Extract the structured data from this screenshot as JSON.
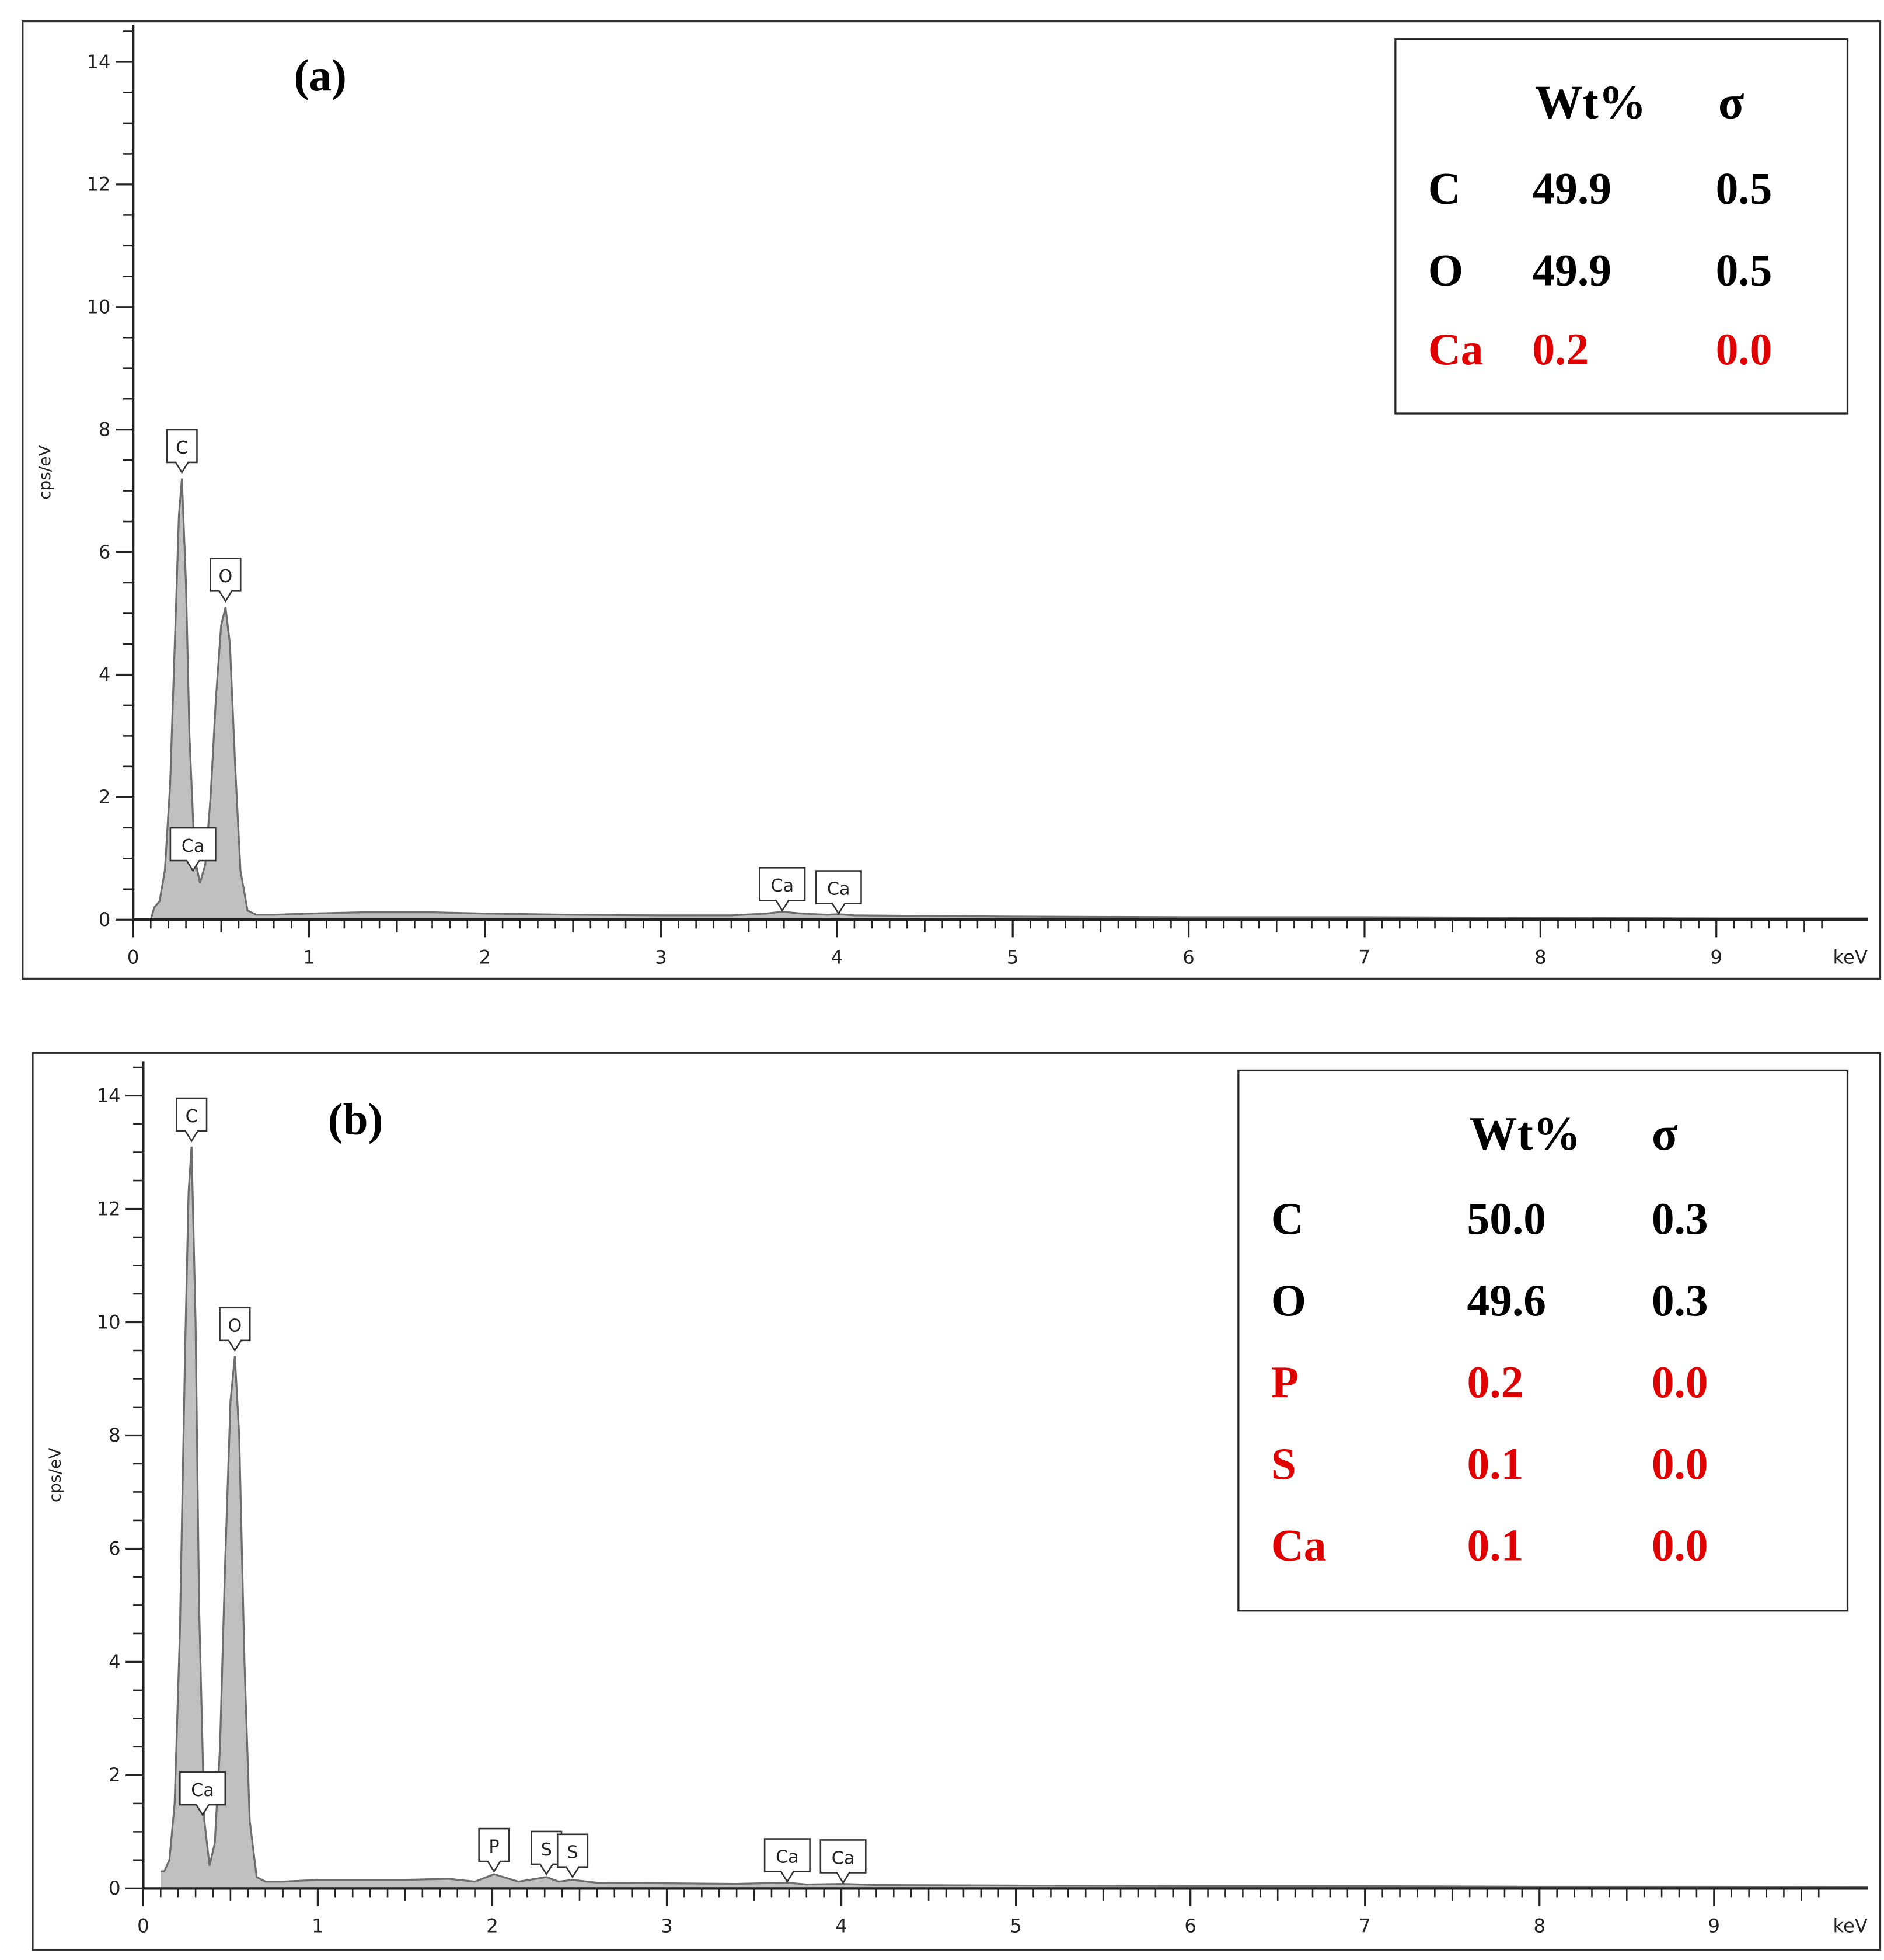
{
  "chart_data": [
    {
      "type": "area",
      "panel_label": "(a)",
      "y_label": "cps/eV",
      "x_unit": "keV",
      "color": "#c0c0c0",
      "line_color": "#6e6e6e",
      "xlim": [
        0,
        9.86
      ],
      "ylim": [
        0,
        14.6
      ],
      "xticks": [
        0,
        1,
        2,
        3,
        4,
        5,
        6,
        7,
        8,
        9
      ],
      "yticks": [
        0,
        2,
        4,
        6,
        8,
        10,
        12,
        14
      ],
      "x": [
        0.1,
        0.12,
        0.15,
        0.18,
        0.21,
        0.24,
        0.26,
        0.277,
        0.3,
        0.32,
        0.35,
        0.38,
        0.41,
        0.44,
        0.47,
        0.5,
        0.525,
        0.55,
        0.58,
        0.61,
        0.65,
        0.7,
        0.8,
        1.0,
        1.3,
        1.7,
        2.0,
        2.5,
        3.0,
        3.4,
        3.6,
        3.69,
        3.8,
        3.95,
        4.01,
        4.1,
        4.5,
        5,
        6,
        7,
        8,
        9,
        9.86
      ],
      "values": [
        0,
        0.2,
        0.3,
        0.8,
        2.2,
        4.8,
        6.6,
        7.2,
        5.5,
        3.0,
        1.0,
        0.6,
        0.9,
        2.0,
        3.6,
        4.8,
        5.1,
        4.5,
        2.5,
        0.8,
        0.15,
        0.08,
        0.08,
        0.1,
        0.12,
        0.12,
        0.1,
        0.08,
        0.07,
        0.07,
        0.1,
        0.13,
        0.1,
        0.08,
        0.09,
        0.07,
        0.06,
        0.05,
        0.04,
        0.04,
        0.03,
        0.02,
        0.02
      ],
      "peak_labels": [
        {
          "label": "C",
          "x": 0.277,
          "y": 7.3
        },
        {
          "label": "O",
          "x": 0.525,
          "y": 5.2
        },
        {
          "label": "Ca",
          "x": 0.34,
          "y": 0.8
        },
        {
          "label": "Ca",
          "x": 3.69,
          "y": 0.15
        },
        {
          "label": "Ca",
          "x": 4.01,
          "y": 0.1
        }
      ],
      "table": {
        "columns": [
          "Wt%",
          "σ"
        ],
        "rows": [
          {
            "element": "C",
            "wt": "49.9",
            "sigma": "0.5",
            "color": "#000000"
          },
          {
            "element": "O",
            "wt": "49.9",
            "sigma": "0.5",
            "color": "#000000"
          },
          {
            "element": "Ca",
            "wt": "0.2",
            "sigma": "0.0",
            "color": "#e00000"
          }
        ]
      }
    },
    {
      "type": "area",
      "panel_label": "(b)",
      "y_label": "cps/eV",
      "x_unit": "keV",
      "color": "#c0c0c0",
      "line_color": "#6e6e6e",
      "xlim": [
        0,
        9.88
      ],
      "ylim": [
        0,
        14.6
      ],
      "xticks": [
        0,
        1,
        2,
        3,
        4,
        5,
        6,
        7,
        8,
        9
      ],
      "yticks": [
        0,
        2,
        4,
        6,
        8,
        10,
        12,
        14
      ],
      "x": [
        0.1,
        0.12,
        0.15,
        0.18,
        0.21,
        0.24,
        0.26,
        0.277,
        0.3,
        0.32,
        0.35,
        0.38,
        0.41,
        0.44,
        0.47,
        0.5,
        0.525,
        0.55,
        0.58,
        0.61,
        0.65,
        0.7,
        0.8,
        1.0,
        1.3,
        1.5,
        1.75,
        1.9,
        2.01,
        2.15,
        2.31,
        2.38,
        2.46,
        2.6,
        3.0,
        3.4,
        3.69,
        3.8,
        4.01,
        4.2,
        5,
        6,
        7,
        8,
        9,
        9.88
      ],
      "values": [
        0.3,
        0.3,
        0.5,
        1.5,
        4.5,
        9.5,
        12.3,
        13.1,
        10.0,
        5.0,
        1.2,
        0.4,
        0.8,
        2.5,
        5.8,
        8.6,
        9.4,
        8.0,
        4.0,
        1.2,
        0.2,
        0.12,
        0.12,
        0.15,
        0.15,
        0.15,
        0.17,
        0.12,
        0.25,
        0.12,
        0.2,
        0.12,
        0.15,
        0.1,
        0.09,
        0.08,
        0.1,
        0.07,
        0.08,
        0.06,
        0.05,
        0.04,
        0.04,
        0.03,
        0.03,
        0.02
      ],
      "peak_labels": [
        {
          "label": "C",
          "x": 0.277,
          "y": 13.2
        },
        {
          "label": "O",
          "x": 0.525,
          "y": 9.5
        },
        {
          "label": "Ca",
          "x": 0.34,
          "y": 1.3
        },
        {
          "label": "P",
          "x": 2.01,
          "y": 0.3
        },
        {
          "label": "S",
          "x": 2.31,
          "y": 0.25
        },
        {
          "label": "S",
          "x": 2.46,
          "y": 0.2
        },
        {
          "label": "Ca",
          "x": 3.69,
          "y": 0.12
        },
        {
          "label": "Ca",
          "x": 4.01,
          "y": 0.1
        }
      ],
      "table": {
        "columns": [
          "Wt%",
          "σ"
        ],
        "rows": [
          {
            "element": "C",
            "wt": "50.0",
            "sigma": "0.3",
            "color": "#000000"
          },
          {
            "element": "O",
            "wt": "49.6",
            "sigma": "0.3",
            "color": "#000000"
          },
          {
            "element": "P",
            "wt": "0.2",
            "sigma": "0.0",
            "color": "#e00000"
          },
          {
            "element": "S",
            "wt": "0.1",
            "sigma": "0.0",
            "color": "#e00000"
          },
          {
            "element": "Ca",
            "wt": "0.1",
            "sigma": "0.0",
            "color": "#e00000"
          }
        ]
      }
    }
  ]
}
